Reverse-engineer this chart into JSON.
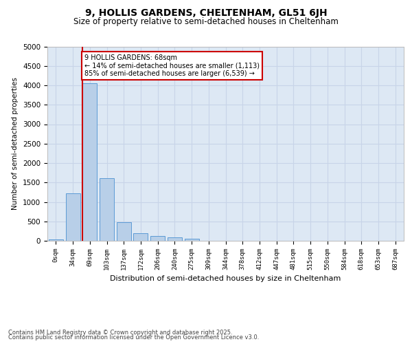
{
  "title": "9, HOLLIS GARDENS, CHELTENHAM, GL51 6JH",
  "subtitle": "Size of property relative to semi-detached houses in Cheltenham",
  "xlabel": "Distribution of semi-detached houses by size in Cheltenham",
  "ylabel": "Number of semi-detached properties",
  "categories": [
    "0sqm",
    "34sqm",
    "69sqm",
    "103sqm",
    "137sqm",
    "172sqm",
    "206sqm",
    "240sqm",
    "275sqm",
    "309sqm",
    "344sqm",
    "378sqm",
    "412sqm",
    "447sqm",
    "481sqm",
    "515sqm",
    "550sqm",
    "584sqm",
    "618sqm",
    "653sqm",
    "687sqm"
  ],
  "bar_heights": [
    30,
    1220,
    4050,
    1610,
    470,
    190,
    120,
    80,
    60,
    0,
    0,
    0,
    0,
    0,
    0,
    0,
    0,
    0,
    0,
    0,
    0
  ],
  "bar_color": "#b8cfe8",
  "bar_edge_color": "#5b9bd5",
  "grid_color": "#c8d4e8",
  "background_color": "#dde8f4",
  "vline_color": "#cc0000",
  "annotation_text": "9 HOLLIS GARDENS: 68sqm\n← 14% of semi-detached houses are smaller (1,113)\n85% of semi-detached houses are larger (6,539) →",
  "box_color": "#cc0000",
  "ylim": [
    0,
    5000
  ],
  "yticks": [
    0,
    500,
    1000,
    1500,
    2000,
    2500,
    3000,
    3500,
    4000,
    4500,
    5000
  ],
  "footer_line1": "Contains HM Land Registry data © Crown copyright and database right 2025.",
  "footer_line2": "Contains public sector information licensed under the Open Government Licence v3.0."
}
